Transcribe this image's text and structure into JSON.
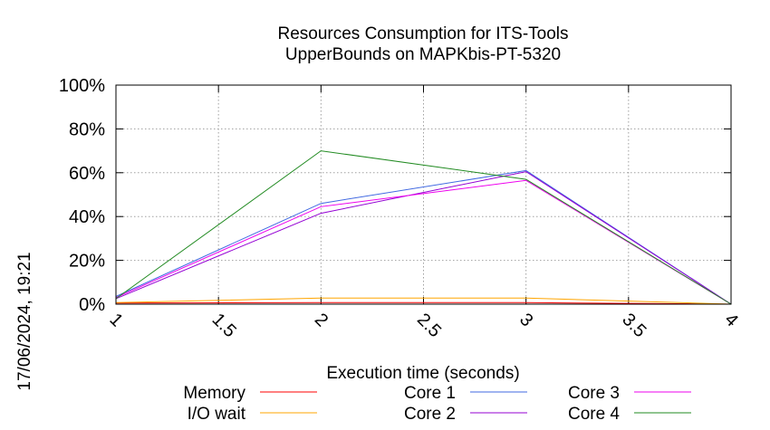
{
  "timestamp": "17/06/2024, 19:21",
  "chart_data": {
    "type": "line",
    "title": [
      "Resources Consumption for ITS-Tools",
      "UpperBounds on MAPKbis-PT-5320"
    ],
    "xlabel": "Execution time (seconds)",
    "ylabel": "",
    "xlim": [
      1,
      4
    ],
    "ylim": [
      0,
      100
    ],
    "x_ticks": [
      "1",
      "1.5",
      "2",
      "2.5",
      "3",
      "3.5",
      "4"
    ],
    "y_ticks": [
      "0%",
      "20%",
      "40%",
      "60%",
      "80%",
      "100%"
    ],
    "grid": true,
    "legend_position": "bottom",
    "series": [
      {
        "name": "Memory",
        "color": "#ff0000",
        "x": [
          1,
          2,
          3,
          4
        ],
        "y": [
          0.5,
          0.7,
          0.7,
          0
        ]
      },
      {
        "name": "I/O wait",
        "color": "#ffa500",
        "x": [
          1,
          2,
          3,
          4
        ],
        "y": [
          0.7,
          2.8,
          2.8,
          0
        ]
      },
      {
        "name": "Core 1",
        "color": "#4169e1",
        "x": [
          1,
          2,
          3,
          4
        ],
        "y": [
          3.5,
          46,
          61,
          0
        ]
      },
      {
        "name": "Core 2",
        "color": "#9400d3",
        "x": [
          1,
          2,
          3,
          4
        ],
        "y": [
          2.5,
          41.5,
          60.5,
          0
        ]
      },
      {
        "name": "Core 3",
        "color": "#ee00ee",
        "x": [
          1,
          2,
          3,
          4
        ],
        "y": [
          3,
          44.5,
          56.5,
          0
        ]
      },
      {
        "name": "Core 4",
        "color": "#228b22",
        "x": [
          1,
          2,
          3,
          4
        ],
        "y": [
          2.5,
          70,
          57,
          0
        ]
      }
    ]
  }
}
